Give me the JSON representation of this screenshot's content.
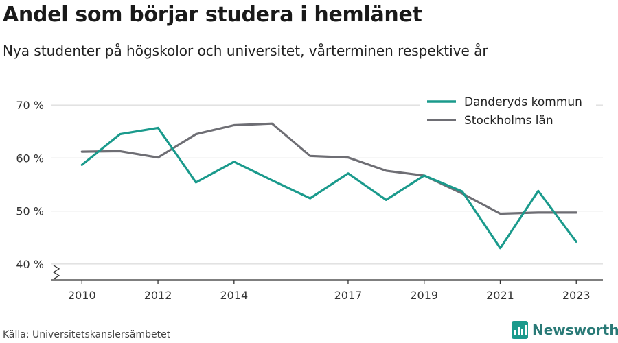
{
  "title": "Andel som börjar studera i hemlänet",
  "subtitle": "Nya studenter på högskolor och universitet, vårterminen respektive år",
  "source": "Källa: Universitetskanslersämbetet",
  "brand": "Newsworthy",
  "chart_data": {
    "type": "line",
    "x": [
      2010,
      2011,
      2012,
      2013,
      2014,
      2015,
      2016,
      2017,
      2018,
      2019,
      2020,
      2021,
      2022,
      2023
    ],
    "x_ticks": [
      2010,
      2012,
      2014,
      2017,
      2019,
      2021,
      2023
    ],
    "x_tick_labels": [
      "2010",
      "2012",
      "2014",
      "2017",
      "2019",
      "2021",
      "2023"
    ],
    "y_ticks": [
      40,
      50,
      60,
      70
    ],
    "y_tick_labels": [
      "40 %",
      "50 %",
      "60 %",
      "70 %"
    ],
    "ylim": [
      37,
      73
    ],
    "xlim": [
      2009.2,
      2023.7
    ],
    "grid": true,
    "legend_position": "top-right",
    "series": [
      {
        "name": "Danderyds kommun",
        "color": "#1a9a8c",
        "values": [
          58.7,
          64.5,
          65.7,
          55.4,
          59.3,
          55.8,
          52.4,
          57.1,
          52.1,
          56.7,
          53.7,
          43.0,
          53.8,
          44.2
        ]
      },
      {
        "name": "Stockholms län",
        "color": "#6e6e74",
        "values": [
          61.2,
          61.3,
          60.1,
          64.5,
          66.2,
          66.5,
          60.4,
          60.1,
          57.6,
          56.7,
          53.3,
          49.5,
          49.7,
          49.7
        ]
      }
    ]
  }
}
